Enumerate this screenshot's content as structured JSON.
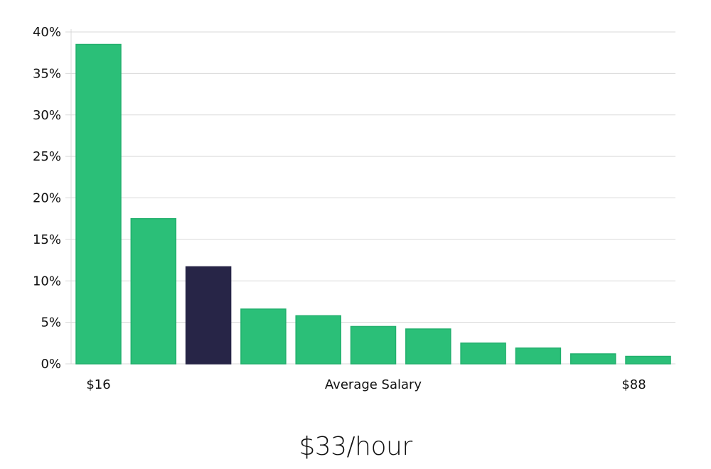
{
  "chart_data": {
    "type": "bar",
    "values": [
      38.5,
      17.5,
      11.7,
      6.6,
      5.8,
      4.5,
      4.2,
      2.5,
      1.9,
      1.2,
      0.9
    ],
    "highlight_index": 2,
    "yticks": [
      "0%",
      "5%",
      "10%",
      "15%",
      "20%",
      "25%",
      "30%",
      "35%",
      "40%"
    ],
    "ylim": [
      0,
      40
    ],
    "grid": true,
    "xlabel": "Average Salary",
    "x_min_label": "$16",
    "x_max_label": "$88",
    "colors": {
      "bar": "#2bbf78",
      "bar_edge": "#22b06d",
      "highlight": "#272547",
      "grid": "#d9d9d9"
    }
  },
  "result": {
    "value_label": "$33/hour"
  }
}
